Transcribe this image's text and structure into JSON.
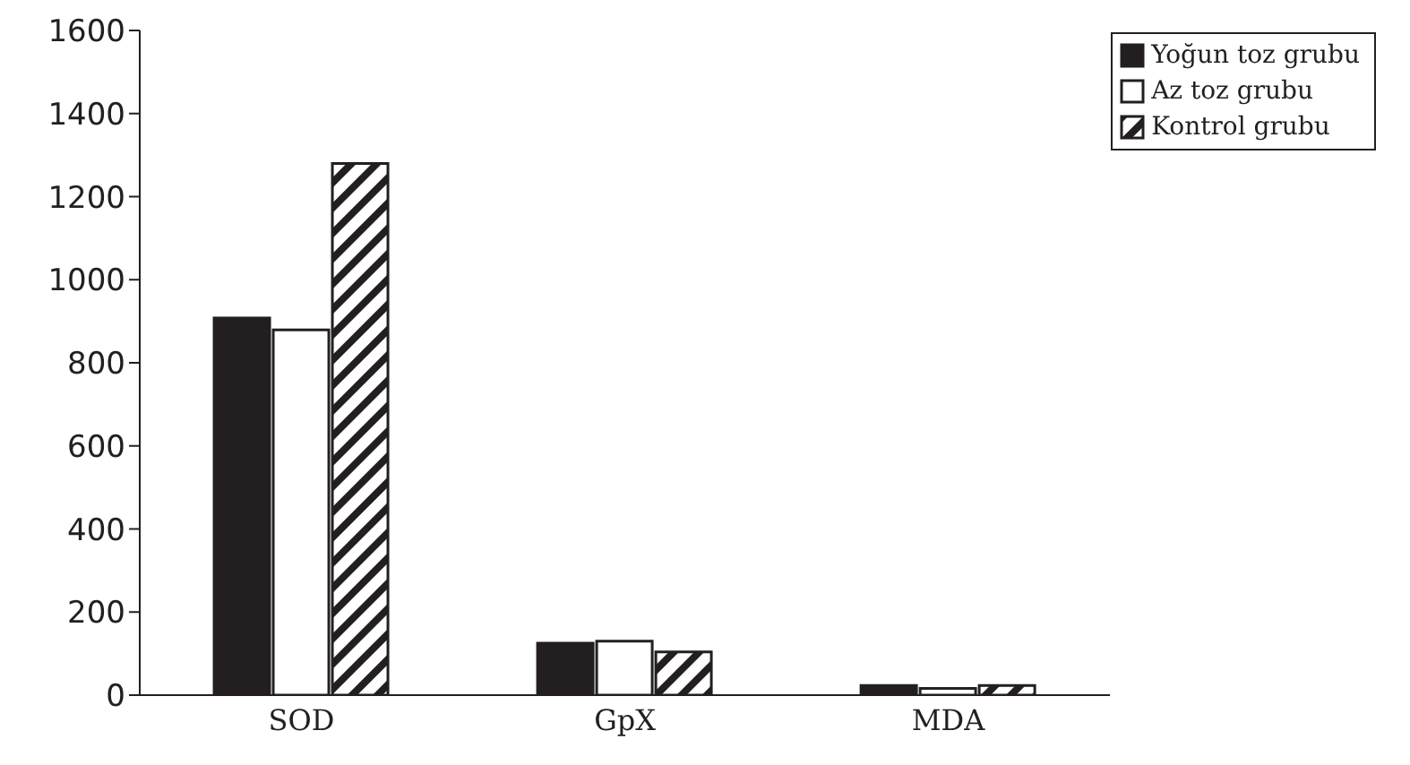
{
  "chart_data": {
    "type": "bar",
    "categories": [
      "SOD",
      "GpX",
      "MDA"
    ],
    "series": [
      {
        "name": "Yoğun toz grubu",
        "color": "#231f20",
        "values": [
          908,
          125,
          23
        ]
      },
      {
        "name": "Az toz grubu",
        "color": "#ffffff",
        "values": [
          879,
          130,
          16
        ]
      },
      {
        "name": "Kontrol grubu",
        "color": "#231f20",
        "values": [
          1280,
          104,
          23
        ]
      }
    ],
    "ylim": [
      0,
      1600
    ],
    "yticks": [
      0,
      200,
      400,
      600,
      800,
      1000,
      1200,
      1400,
      1600
    ],
    "legend": "top right"
  }
}
